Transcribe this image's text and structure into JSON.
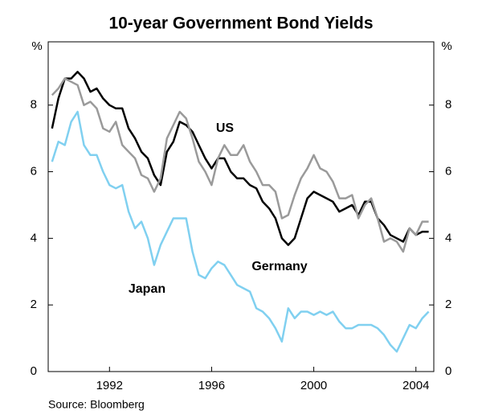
{
  "chart_data": {
    "type": "line",
    "title": "10-year Government Bond Yields",
    "y_unit": "%",
    "source": "Source: Bloomberg",
    "xlim": [
      1989.6,
      2004.7
    ],
    "xticks": [
      1992,
      1996,
      2000,
      2004
    ],
    "ylim": [
      0,
      9.9
    ],
    "yticks": [
      0,
      2,
      4,
      6,
      8
    ],
    "grid": false,
    "x": [
      1989.75,
      1990,
      1990.25,
      1990.5,
      1990.75,
      1991,
      1991.25,
      1991.5,
      1991.75,
      1992,
      1992.25,
      1992.5,
      1992.75,
      1993,
      1993.25,
      1993.5,
      1993.75,
      1994,
      1994.25,
      1994.5,
      1994.75,
      1995,
      1995.25,
      1995.5,
      1995.75,
      1996,
      1996.25,
      1996.5,
      1996.75,
      1997,
      1997.25,
      1997.5,
      1997.75,
      1998,
      1998.25,
      1998.5,
      1998.75,
      1999,
      1999.25,
      1999.5,
      1999.75,
      2000,
      2000.25,
      2000.5,
      2000.75,
      2001,
      2001.25,
      2001.5,
      2001.75,
      2002,
      2002.25,
      2002.5,
      2002.75,
      2003,
      2003.25,
      2003.5,
      2003.75,
      2004,
      2004.25,
      2004.5
    ],
    "series": [
      {
        "name": "US",
        "color": "#9a9a9a",
        "values": [
          8.3,
          8.5,
          8.8,
          8.7,
          8.6,
          8.0,
          8.1,
          7.9,
          7.3,
          7.2,
          7.5,
          6.8,
          6.6,
          6.4,
          5.9,
          5.8,
          5.4,
          5.8,
          7.0,
          7.4,
          7.8,
          7.6,
          7.0,
          6.3,
          6.0,
          5.6,
          6.4,
          6.8,
          6.5,
          6.5,
          6.8,
          6.3,
          6.0,
          5.6,
          5.6,
          5.4,
          4.6,
          4.7,
          5.3,
          5.8,
          6.1,
          6.5,
          6.1,
          6.0,
          5.7,
          5.2,
          5.2,
          5.3,
          4.6,
          5.0,
          5.2,
          4.6,
          3.9,
          4.0,
          3.9,
          3.6,
          4.3,
          4.1,
          4.5,
          4.5
        ]
      },
      {
        "name": "Germany",
        "color": "#000000",
        "values": [
          7.3,
          8.2,
          8.8,
          8.8,
          9.0,
          8.8,
          8.4,
          8.5,
          8.2,
          8.0,
          7.9,
          7.9,
          7.3,
          7.0,
          6.6,
          6.4,
          5.9,
          5.6,
          6.6,
          6.9,
          7.5,
          7.4,
          7.2,
          6.8,
          6.4,
          6.1,
          6.4,
          6.4,
          6.0,
          5.8,
          5.8,
          5.6,
          5.5,
          5.1,
          4.9,
          4.6,
          4.0,
          3.8,
          4.0,
          4.6,
          5.2,
          5.4,
          5.3,
          5.2,
          5.1,
          4.8,
          4.9,
          5.0,
          4.7,
          5.1,
          5.1,
          4.6,
          4.4,
          4.1,
          4.0,
          3.9,
          4.3,
          4.1,
          4.2,
          4.2
        ]
      },
      {
        "name": "Japan",
        "color": "#80d0f0",
        "values": [
          6.3,
          6.9,
          6.8,
          7.5,
          7.8,
          6.8,
          6.5,
          6.5,
          6.0,
          5.6,
          5.5,
          5.6,
          4.8,
          4.3,
          4.5,
          4.0,
          3.2,
          3.8,
          4.2,
          4.6,
          4.6,
          4.6,
          3.6,
          2.9,
          2.8,
          3.1,
          3.3,
          3.2,
          2.9,
          2.6,
          2.5,
          2.4,
          1.9,
          1.8,
          1.6,
          1.3,
          0.9,
          1.9,
          1.6,
          1.8,
          1.8,
          1.7,
          1.8,
          1.7,
          1.8,
          1.5,
          1.3,
          1.3,
          1.4,
          1.4,
          1.4,
          1.3,
          1.1,
          0.8,
          0.6,
          1.0,
          1.4,
          1.3,
          1.6,
          1.8
        ]
      }
    ]
  }
}
